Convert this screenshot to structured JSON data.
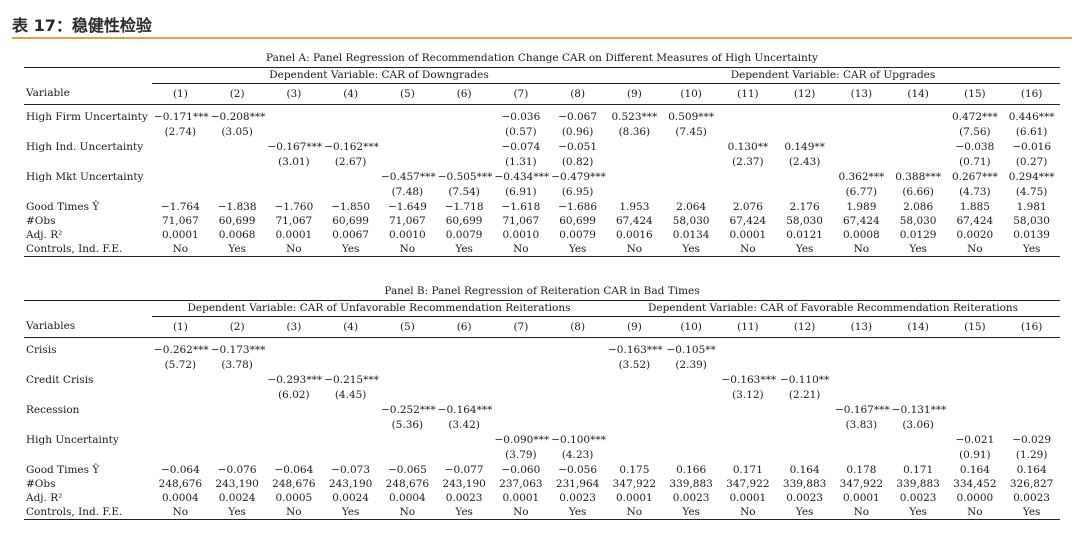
{
  "title": "表 17：稳健性检验",
  "panelA": {
    "caption": "Panel A: Panel Regression of Recommendation Change CAR on Different Measures of High Uncertainty",
    "groups": [
      "Dependent Variable: CAR of Downgrades",
      "Dependent Variable: CAR of Upgrades"
    ],
    "var_header": "Variable",
    "columns": [
      "(1)",
      "(2)",
      "(3)",
      "(4)",
      "(5)",
      "(6)",
      "(7)",
      "(8)",
      "(9)",
      "(10)",
      "(11)",
      "(12)",
      "(13)",
      "(14)",
      "(15)",
      "(16)"
    ],
    "rows": [
      {
        "label": "High Firm Uncertainty",
        "coef": [
          "−0.171***",
          "−0.208***",
          "",
          "",
          "",
          "",
          "−0.036",
          "−0.067",
          "0.523***",
          "0.509***",
          "",
          "",
          "",
          "",
          "0.472***",
          "0.446***"
        ],
        "t": [
          "(2.74)",
          "(3.05)",
          "",
          "",
          "",
          "",
          "(0.57)",
          "(0.96)",
          "(8.36)",
          "(7.45)",
          "",
          "",
          "",
          "",
          "(7.56)",
          "(6.61)"
        ]
      },
      {
        "label": "High Ind. Uncertainty",
        "coef": [
          "",
          "",
          "−0.167***",
          "−0.162***",
          "",
          "",
          "−0.074",
          "−0.051",
          "",
          "",
          "0.130**",
          "0.149**",
          "",
          "",
          "−0.038",
          "−0.016"
        ],
        "t": [
          "",
          "",
          "(3.01)",
          "(2.67)",
          "",
          "",
          "(1.31)",
          "(0.82)",
          "",
          "",
          "(2.37)",
          "(2.43)",
          "",
          "",
          "(0.71)",
          "(0.27)"
        ]
      },
      {
        "label": "High Mkt Uncertainty",
        "coef": [
          "",
          "",
          "",
          "",
          "−0.457***",
          "−0.505***",
          "−0.434***",
          "−0.479***",
          "",
          "",
          "",
          "",
          "0.362***",
          "0.388***",
          "0.267***",
          "0.294***"
        ],
        "t": [
          "",
          "",
          "",
          "",
          "(7.48)",
          "(7.54)",
          "(6.91)",
          "(6.95)",
          "",
          "",
          "",
          "",
          "(6.77)",
          "(6.66)",
          "(4.73)",
          "(4.75)"
        ]
      }
    ],
    "stats": [
      {
        "label": "Good Times Ŷ",
        "values": [
          "−1.764",
          "−1.838",
          "−1.760",
          "−1.850",
          "−1.649",
          "−1.718",
          "−1.618",
          "−1.686",
          "1.953",
          "2.064",
          "2.076",
          "2.176",
          "1.989",
          "2.086",
          "1.885",
          "1.981"
        ]
      },
      {
        "label": "#Obs",
        "values": [
          "71,067",
          "60,699",
          "71,067",
          "60,699",
          "71,067",
          "60,699",
          "71,067",
          "60,699",
          "67,424",
          "58,030",
          "67,424",
          "58,030",
          "67,424",
          "58,030",
          "67,424",
          "58,030"
        ]
      },
      {
        "label": "Adj. R²",
        "values": [
          "0.0001",
          "0.0068",
          "0.0001",
          "0.0067",
          "0.0010",
          "0.0079",
          "0.0010",
          "0.0079",
          "0.0016",
          "0.0134",
          "0.0001",
          "0.0121",
          "0.0008",
          "0.0129",
          "0.0020",
          "0.0139"
        ]
      },
      {
        "label": "Controls, Ind. F.E.",
        "values": [
          "No",
          "Yes",
          "No",
          "Yes",
          "No",
          "Yes",
          "No",
          "Yes",
          "No",
          "Yes",
          "No",
          "Yes",
          "No",
          "Yes",
          "No",
          "Yes"
        ]
      }
    ]
  },
  "panelB": {
    "caption": "Panel B: Panel Regression of Reiteration CAR in Bad Times",
    "groups": [
      "Dependent Variable: CAR of Unfavorable Recommendation Reiterations",
      "Dependent Variable: CAR of Favorable Recommendation Reiterations"
    ],
    "var_header": "Variables",
    "columns": [
      "(1)",
      "(2)",
      "(3)",
      "(4)",
      "(5)",
      "(6)",
      "(7)",
      "(8)",
      "(9)",
      "(10)",
      "(11)",
      "(12)",
      "(13)",
      "(14)",
      "(15)",
      "(16)"
    ],
    "rows": [
      {
        "label": "Crisis",
        "coef": [
          "−0.262***",
          "−0.173***",
          "",
          "",
          "",
          "",
          "",
          "",
          "−0.163***",
          "−0.105**",
          "",
          "",
          "",
          "",
          "",
          ""
        ],
        "t": [
          "(5.72)",
          "(3.78)",
          "",
          "",
          "",
          "",
          "",
          "",
          "(3.52)",
          "(2.39)",
          "",
          "",
          "",
          "",
          "",
          ""
        ]
      },
      {
        "label": "Credit Crisis",
        "coef": [
          "",
          "",
          "−0.293***",
          "−0.215***",
          "",
          "",
          "",
          "",
          "",
          "",
          "−0.163***",
          "−0.110**",
          "",
          "",
          "",
          ""
        ],
        "t": [
          "",
          "",
          "(6.02)",
          "(4.45)",
          "",
          "",
          "",
          "",
          "",
          "",
          "(3.12)",
          "(2.21)",
          "",
          "",
          "",
          ""
        ]
      },
      {
        "label": "Recession",
        "coef": [
          "",
          "",
          "",
          "",
          "−0.252***",
          "−0.164***",
          "",
          "",
          "",
          "",
          "",
          "",
          "−0.167***",
          "−0.131***",
          "",
          ""
        ],
        "t": [
          "",
          "",
          "",
          "",
          "(5.36)",
          "(3.42)",
          "",
          "",
          "",
          "",
          "",
          "",
          "(3.83)",
          "(3.06)",
          "",
          ""
        ]
      },
      {
        "label": "High Uncertainty",
        "coef": [
          "",
          "",
          "",
          "",
          "",
          "",
          "−0.090***",
          "−0.100***",
          "",
          "",
          "",
          "",
          "",
          "",
          "−0.021",
          "−0.029"
        ],
        "t": [
          "",
          "",
          "",
          "",
          "",
          "",
          "(3.79)",
          "(4.23)",
          "",
          "",
          "",
          "",
          "",
          "",
          "(0.91)",
          "(1.29)"
        ]
      }
    ],
    "stats": [
      {
        "label": "Good Times Ŷ",
        "values": [
          "−0.064",
          "−0.076",
          "−0.064",
          "−0.073",
          "−0.065",
          "−0.077",
          "−0.060",
          "−0.056",
          "0.175",
          "0.166",
          "0.171",
          "0.164",
          "0.178",
          "0.171",
          "0.164",
          "0.164"
        ]
      },
      {
        "label": "#Obs",
        "values": [
          "248,676",
          "243,190",
          "248,676",
          "243,190",
          "248,676",
          "243,190",
          "237,063",
          "231,964",
          "347,922",
          "339,883",
          "347,922",
          "339,883",
          "347,922",
          "339,883",
          "334,452",
          "326,827"
        ]
      },
      {
        "label": "Adj. R²",
        "values": [
          "0.0004",
          "0.0024",
          "0.0005",
          "0.0024",
          "0.0004",
          "0.0023",
          "0.0001",
          "0.0023",
          "0.0001",
          "0.0023",
          "0.0001",
          "0.0023",
          "0.0001",
          "0.0023",
          "0.0000",
          "0.0023"
        ]
      },
      {
        "label": "Controls, Ind. F.E.",
        "values": [
          "No",
          "Yes",
          "No",
          "Yes",
          "No",
          "Yes",
          "No",
          "Yes",
          "No",
          "Yes",
          "No",
          "Yes",
          "No",
          "Yes",
          "No",
          "Yes"
        ]
      }
    ]
  }
}
